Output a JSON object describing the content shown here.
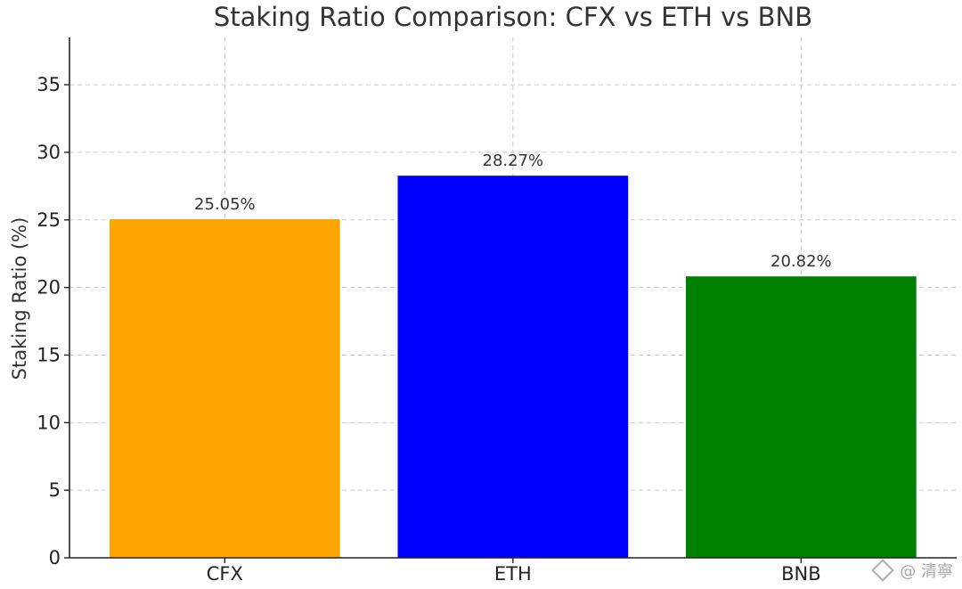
{
  "chart_data": {
    "type": "bar",
    "title": "Staking Ratio Comparison: CFX vs ETH vs BNB",
    "xlabel": "",
    "ylabel": "Staking Ratio (%)",
    "categories": [
      "CFX",
      "ETH",
      "BNB"
    ],
    "values": [
      25.05,
      28.27,
      20.82
    ],
    "data_labels": [
      "25.05%",
      "28.27%",
      "20.82%"
    ],
    "colors": [
      "#FFA500",
      "#0000FF",
      "#008000"
    ],
    "ylim": [
      0,
      38.5
    ],
    "yticks": [
      0,
      5,
      10,
      15,
      20,
      25,
      30,
      35
    ],
    "grid": true
  },
  "watermark": {
    "text": "@ 清寧",
    "icon": "diamond-logo-icon"
  }
}
